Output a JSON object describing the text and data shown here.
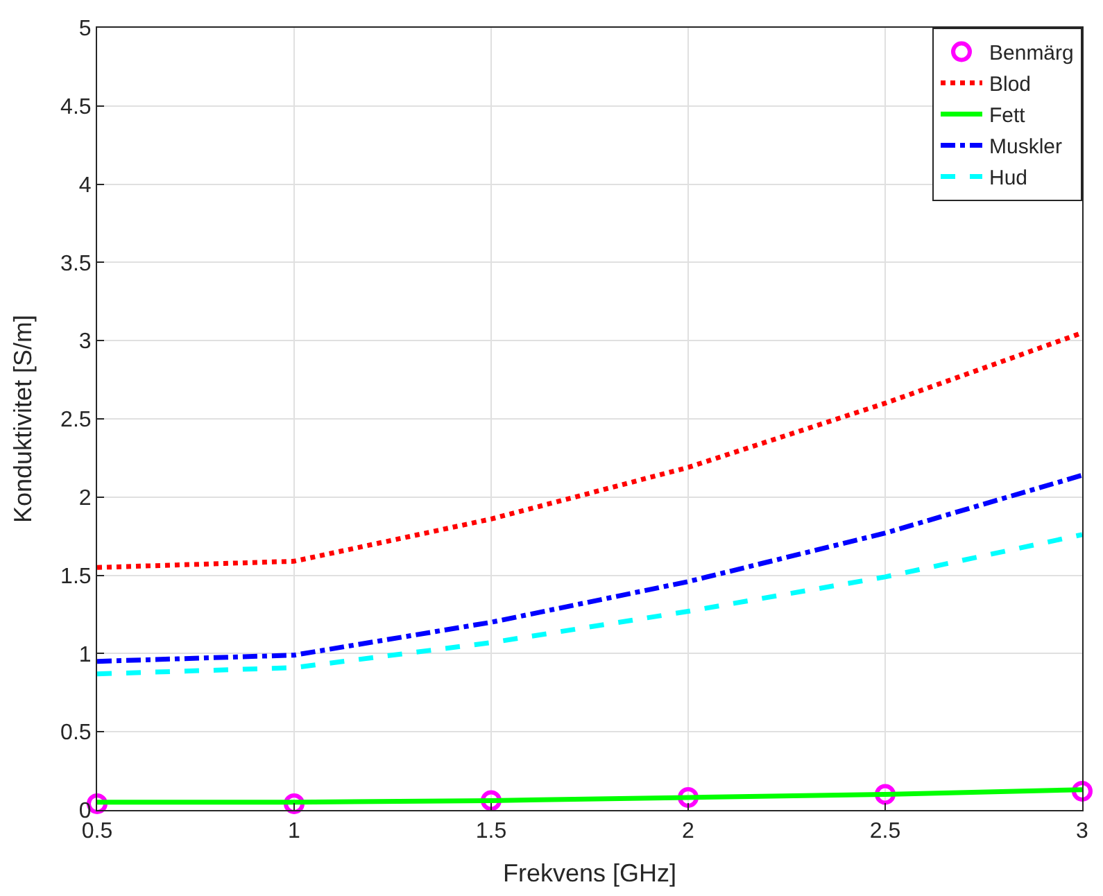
{
  "chart_data": {
    "type": "line",
    "xlabel": "Frekvens [GHz]",
    "ylabel": "Konduktivitet [S/m]",
    "x": [
      0.5,
      1,
      1.5,
      2,
      2.5,
      3
    ],
    "xlim": [
      0.5,
      3
    ],
    "xticks": [
      0.5,
      1,
      1.5,
      2,
      2.5,
      3
    ],
    "ylim": [
      0,
      5
    ],
    "yticks": [
      0,
      0.5,
      1,
      1.5,
      2,
      2.5,
      3,
      3.5,
      4,
      4.5,
      5
    ],
    "grid": true,
    "legend": "top right",
    "series": [
      {
        "name": "Benmärg",
        "type": "scatter",
        "marker": "circle",
        "color": "#ff00ff",
        "values": [
          0.04,
          0.04,
          0.06,
          0.08,
          0.1,
          0.12
        ]
      },
      {
        "name": "Blod",
        "color": "#ff0000",
        "line_style": "dotted",
        "values": [
          1.55,
          1.59,
          1.86,
          2.19,
          2.6,
          3.05
        ]
      },
      {
        "name": "Fett",
        "color": "#00ff00",
        "line_style": "solid",
        "values": [
          0.05,
          0.05,
          0.06,
          0.08,
          0.1,
          0.13
        ]
      },
      {
        "name": "Muskler",
        "color": "#0000ff",
        "line_style": "dashdot",
        "values": [
          0.95,
          0.99,
          1.2,
          1.46,
          1.77,
          2.14
        ]
      },
      {
        "name": "Hud",
        "color": "#00ffff",
        "line_style": "dashed",
        "values": [
          0.87,
          0.91,
          1.07,
          1.27,
          1.49,
          1.76
        ]
      }
    ]
  }
}
